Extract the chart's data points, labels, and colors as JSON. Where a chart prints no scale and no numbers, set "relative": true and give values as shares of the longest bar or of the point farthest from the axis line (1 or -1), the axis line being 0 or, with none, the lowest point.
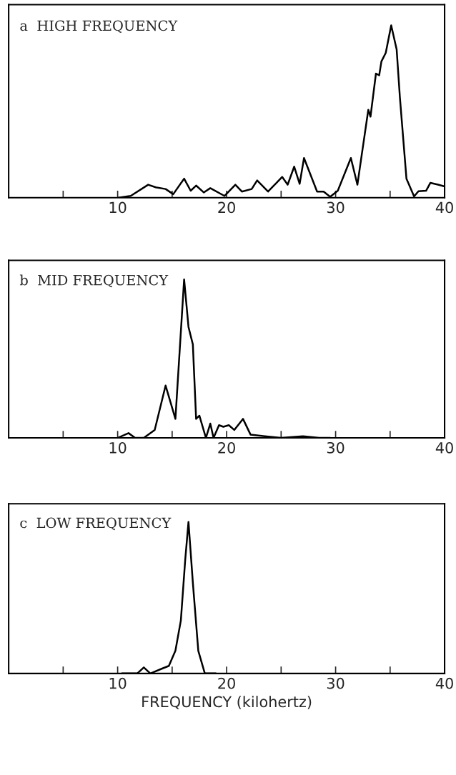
{
  "chart_data": [
    {
      "type": "line",
      "title": "a  HIGH FREQUENCY",
      "relative": true,
      "xlim": [
        0,
        40
      ],
      "tick_labels": "x",
      "grid": false,
      "legend": false,
      "xticks": [
        {
          "value": 5,
          "label": null
        },
        10,
        {
          "value": 15,
          "label": null
        },
        20,
        {
          "value": 25,
          "label": null
        },
        30,
        {
          "value": 35,
          "label": null
        },
        40
      ],
      "series": [
        {
          "color": "#000000",
          "x": [
            10.1,
            11.2,
            12.8,
            13.5,
            14.4,
            15.1,
            16.1,
            16.7,
            17.2,
            17.9,
            18.5,
            19.8,
            20.8,
            21.4,
            22.3,
            22.8,
            23.8,
            25.1,
            25.6,
            26.2,
            26.7,
            27.1,
            28.3,
            28.9,
            29.5,
            30.2,
            31.4,
            32.0,
            32.4,
            33.0,
            33.2,
            33.7,
            34.0,
            34.2,
            34.6,
            35.1,
            35.6,
            35.9,
            36.5,
            37.2,
            37.6,
            38.3,
            38.7,
            39.4,
            40.0
          ],
          "values": [
            0,
            0.01,
            0.075,
            0.06,
            0.05,
            0.02,
            0.11,
            0.04,
            0.07,
            0.03,
            0.055,
            0.01,
            0.075,
            0.035,
            0.05,
            0.1,
            0.035,
            0.12,
            0.075,
            0.18,
            0.08,
            0.23,
            0.035,
            0.035,
            0.005,
            0.04,
            0.23,
            0.075,
            0.25,
            0.51,
            0.47,
            0.72,
            0.71,
            0.79,
            0.84,
            1,
            0.86,
            0.58,
            0.11,
            0.007,
            0.037,
            0.04,
            0.086,
            0.075,
            0.065
          ]
        }
      ]
    },
    {
      "type": "line",
      "title": "b  MID FREQUENCY",
      "relative": true,
      "xlim": [
        0,
        40
      ],
      "tick_labels": "x",
      "grid": false,
      "legend": false,
      "xticks": [
        {
          "value": 5,
          "label": null
        },
        10,
        {
          "value": 15,
          "label": null
        },
        20,
        {
          "value": 25,
          "label": null
        },
        30,
        {
          "value": 35,
          "label": null
        },
        40
      ],
      "series": [
        {
          "color": "#000000",
          "x": [
            10.0,
            11.0,
            11.6,
            12.4,
            13.4,
            14.4,
            15.3,
            16.1,
            16.5,
            16.9,
            17.2,
            17.5,
            18.1,
            18.5,
            18.8,
            19.3,
            19.7,
            20.2,
            20.7,
            21.5,
            22.2,
            23.5,
            25.0,
            27.0,
            28.5,
            29.5
          ],
          "values": [
            0,
            0.03,
            0.0,
            0.0,
            0.05,
            0.33,
            0.12,
            1,
            0.7,
            0.59,
            0.12,
            0.14,
            0.0,
            0.09,
            0.0,
            0.08,
            0.07,
            0.08,
            0.05,
            0.12,
            0.02,
            0.01,
            0.0,
            0.01,
            0.0,
            0.0
          ]
        }
      ]
    },
    {
      "type": "line",
      "title": "c  LOW FREQUENCY",
      "relative": true,
      "xlim": [
        0,
        40
      ],
      "tick_labels": "x",
      "grid": false,
      "legend": false,
      "xlabel": "FREQUENCY (kilohertz)",
      "xticks": [
        {
          "value": 5,
          "label": null
        },
        10,
        {
          "value": 15,
          "label": null
        },
        20,
        {
          "value": 25,
          "label": null
        },
        30,
        {
          "value": 35,
          "label": null
        },
        40
      ],
      "series": [
        {
          "color": "#000000",
          "x": [
            10.4,
            11.8,
            12.4,
            13.0,
            14.0,
            14.7,
            15.3,
            15.8,
            16.2,
            16.5,
            16.9,
            17.4,
            18.0,
            19.0
          ],
          "values": [
            0,
            0.0,
            0.04,
            0.0,
            0.03,
            0.05,
            0.15,
            0.35,
            0.75,
            1,
            0.6,
            0.15,
            0.0,
            0.0
          ]
        }
      ]
    }
  ]
}
